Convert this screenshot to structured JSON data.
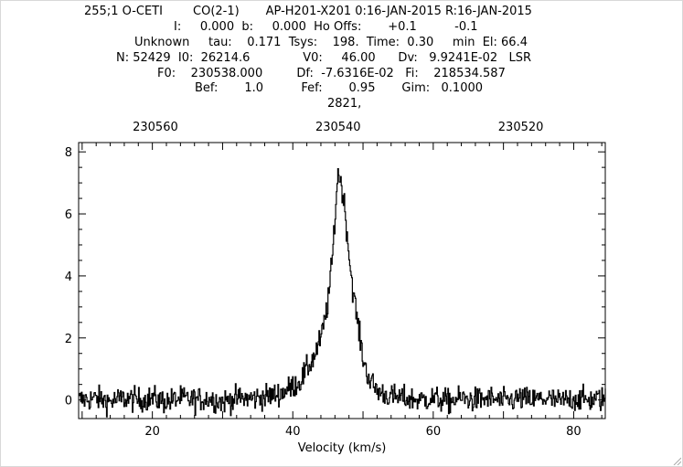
{
  "header": {
    "line1": "255;1 O-CETI        CO(2-1)       AP-H201-X201 0:16-JAN-2015 R:16-JAN-2015",
    "line2": "I:     0.000  b:     0.000  Ho Offs:       +0.1          -0.1",
    "line3": "Unknown     tau:    0.171  Tsys:    198.  Time:  0.30     min  El: 66.4",
    "line4": "N: 52429  I0:  26214.6              V0:     46.00      Dv:   9.9241E-02   LSR",
    "line5": "F0:    230538.000         Df:  -7.6316E-02   Fi:    218534.587",
    "line6": "Bef:       1.0          Fef:       0.95       Gim:   0.1000",
    "line7": "2821,"
  },
  "chart_data": {
    "type": "line",
    "xlabel": "Velocity (km/s)",
    "ylabel": "",
    "xlim": [
      9.5,
      84.5
    ],
    "ylim": [
      -0.6,
      8.3
    ],
    "x_ticks": [
      20,
      40,
      60,
      80
    ],
    "y_ticks": [
      0,
      2,
      4,
      6,
      8
    ],
    "top_axis": {
      "label": "",
      "ticks": [
        230560,
        230540,
        230520
      ],
      "ticks_at_velocity": [
        20.43,
        46.45,
        72.47
      ]
    },
    "grid": false,
    "series": [
      {
        "points": [
          [
            9.5,
            0.0
          ],
          [
            12.0,
            0.05
          ],
          [
            14.0,
            -0.05
          ],
          [
            16.0,
            0.05
          ],
          [
            18.0,
            0.0
          ],
          [
            20.0,
            0.05
          ],
          [
            22.0,
            -0.05
          ],
          [
            24.0,
            0.05
          ],
          [
            26.0,
            0.0
          ],
          [
            28.0,
            0.05
          ],
          [
            30.0,
            -0.05
          ],
          [
            32.0,
            0.05
          ],
          [
            34.0,
            0.05
          ],
          [
            36.0,
            0.1
          ],
          [
            38.0,
            0.2
          ],
          [
            39.0,
            0.3
          ],
          [
            40.0,
            0.45
          ],
          [
            41.0,
            0.6
          ],
          [
            42.0,
            1.0
          ],
          [
            43.0,
            1.4
          ],
          [
            44.0,
            2.0
          ],
          [
            45.0,
            3.2
          ],
          [
            45.6,
            4.6
          ],
          [
            46.0,
            6.0
          ],
          [
            46.4,
            7.4
          ],
          [
            46.8,
            7.0
          ],
          [
            47.2,
            6.5
          ],
          [
            47.6,
            5.6
          ],
          [
            48.0,
            4.6
          ],
          [
            48.5,
            3.6
          ],
          [
            49.0,
            2.8
          ],
          [
            49.5,
            2.0
          ],
          [
            50.0,
            1.3
          ],
          [
            50.5,
            0.9
          ],
          [
            51.0,
            0.6
          ],
          [
            52.0,
            0.3
          ],
          [
            53.0,
            0.2
          ],
          [
            54.0,
            0.1
          ],
          [
            56.0,
            0.05
          ],
          [
            58.0,
            0.0
          ],
          [
            60.0,
            0.05
          ],
          [
            62.0,
            -0.05
          ],
          [
            64.0,
            0.05
          ],
          [
            66.0,
            0.0
          ],
          [
            68.0,
            0.05
          ],
          [
            70.0,
            -0.05
          ],
          [
            72.0,
            0.05
          ],
          [
            74.0,
            0.0
          ],
          [
            76.0,
            0.05
          ],
          [
            78.0,
            -0.05
          ],
          [
            80.0,
            0.05
          ],
          [
            82.0,
            0.0
          ],
          [
            84.5,
            0.05
          ]
        ],
        "noise_rms": 0.2,
        "color": "#000000"
      }
    ]
  }
}
